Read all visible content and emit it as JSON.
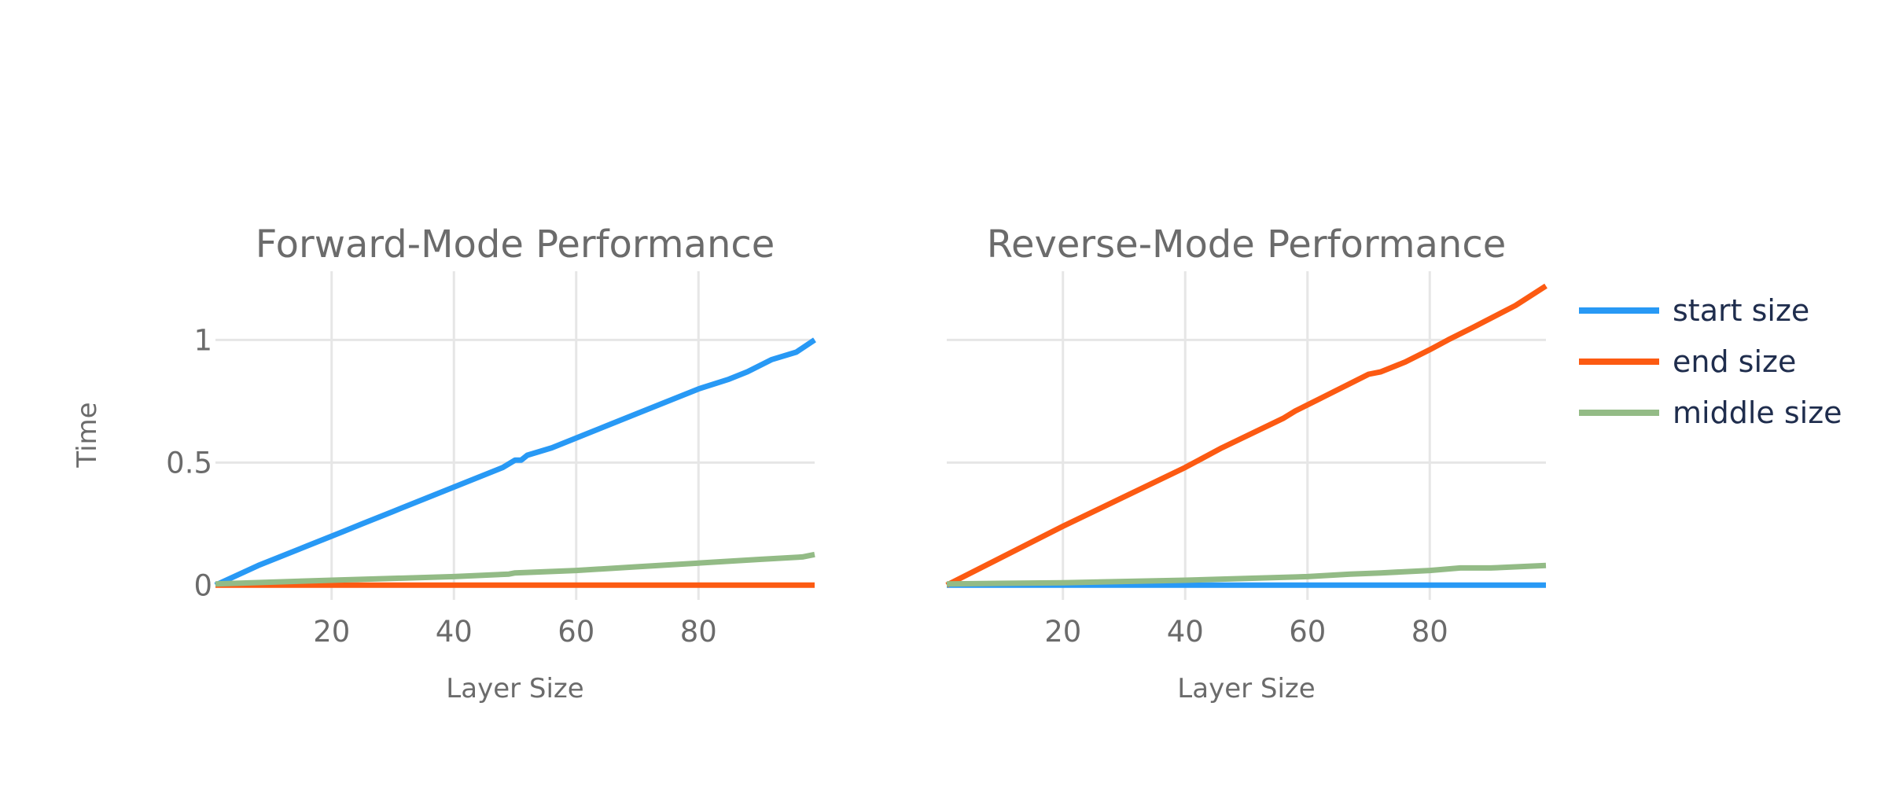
{
  "chart_data": [
    {
      "type": "line",
      "title": "Forward-Mode Performance",
      "xlabel": "Layer Size",
      "ylabel": "Time",
      "xlim": [
        1,
        99
      ],
      "ylim": [
        -0.06,
        1.28
      ],
      "xticks": [
        20,
        40,
        60,
        80
      ],
      "xtick_labels": [
        "20",
        "40",
        "60",
        "80"
      ],
      "yticks": [
        0,
        0.5,
        1
      ],
      "ytick_labels": [
        "0",
        "0.5",
        "1"
      ],
      "grid": true,
      "series": [
        {
          "name": "start size",
          "color": "#2899f5",
          "x": [
            1,
            8,
            16,
            22,
            25,
            30,
            36,
            38,
            48,
            50,
            51,
            52,
            56,
            60,
            62,
            65,
            70,
            80,
            85,
            88,
            92,
            96,
            99
          ],
          "y": [
            0.0,
            0.08,
            0.16,
            0.22,
            0.25,
            0.3,
            0.36,
            0.38,
            0.48,
            0.51,
            0.51,
            0.53,
            0.56,
            0.6,
            0.62,
            0.65,
            0.7,
            0.8,
            0.84,
            0.87,
            0.92,
            0.95,
            1.0
          ]
        },
        {
          "name": "end size",
          "color": "#fc5a12",
          "x": [
            1,
            25,
            50,
            75,
            99
          ],
          "y": [
            0.0,
            0.0,
            0.0,
            0.0,
            0.0
          ]
        },
        {
          "name": "middle size",
          "color": "#93bb86",
          "x": [
            1,
            20,
            40,
            49,
            50,
            60,
            70,
            80,
            90,
            97,
            99
          ],
          "y": [
            0.005,
            0.02,
            0.035,
            0.045,
            0.05,
            0.06,
            0.075,
            0.09,
            0.105,
            0.115,
            0.125
          ]
        }
      ]
    },
    {
      "type": "line",
      "title": "Reverse-Mode Performance",
      "xlabel": "Layer Size",
      "ylabel": "",
      "xlim": [
        1,
        99
      ],
      "ylim": [
        -0.06,
        1.28
      ],
      "xticks": [
        20,
        40,
        60,
        80
      ],
      "xtick_labels": [
        "20",
        "40",
        "60",
        "80"
      ],
      "yticks": [
        0,
        0.5,
        1
      ],
      "grid": true,
      "series": [
        {
          "name": "start size",
          "color": "#2899f5",
          "x": [
            1,
            25,
            50,
            75,
            99
          ],
          "y": [
            0.0,
            0.0,
            0.0,
            0.0,
            0.0
          ]
        },
        {
          "name": "end size",
          "color": "#fc5a12",
          "x": [
            1,
            20,
            40,
            46,
            56,
            58,
            62,
            66,
            70,
            72,
            76,
            80,
            83,
            87,
            94,
            99
          ],
          "y": [
            0.0,
            0.24,
            0.48,
            0.56,
            0.68,
            0.71,
            0.76,
            0.81,
            0.86,
            0.87,
            0.91,
            0.96,
            1.0,
            1.05,
            1.14,
            1.22
          ]
        },
        {
          "name": "middle size",
          "color": "#93bb86",
          "x": [
            1,
            20,
            40,
            60,
            67,
            72,
            80,
            85,
            90,
            99
          ],
          "y": [
            0.005,
            0.01,
            0.02,
            0.035,
            0.045,
            0.05,
            0.06,
            0.07,
            0.07,
            0.08
          ]
        }
      ]
    }
  ],
  "legend": {
    "placement": "right",
    "items": [
      {
        "label": "start size",
        "color": "#2899f5"
      },
      {
        "label": "end size",
        "color": "#fc5a12"
      },
      {
        "label": "middle size",
        "color": "#93bb86"
      }
    ]
  }
}
